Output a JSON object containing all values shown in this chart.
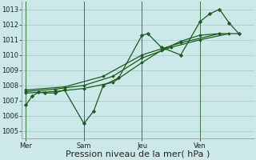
{
  "background_color": "#cce8e8",
  "grid_color": "#99cccc",
  "line_color": "#1a5c1a",
  "marker_color": "#1a5c1a",
  "xlabel": "Pression niveau de la mer( hPa )",
  "ylim": [
    1004.5,
    1013.5
  ],
  "yticks": [
    1005,
    1006,
    1007,
    1008,
    1009,
    1010,
    1011,
    1012,
    1013
  ],
  "day_labels": [
    "Mer",
    "Sam",
    "Jeu",
    "Ven"
  ],
  "day_positions": [
    0,
    3,
    6,
    9
  ],
  "xlim": [
    -0.2,
    11.8
  ],
  "vline_color": "#3a7a3a",
  "xlabel_fontsize": 8,
  "tick_fontsize": 6,
  "figsize": [
    3.2,
    2.0
  ],
  "dpi": 100,
  "series1_x": [
    0,
    0.33,
    0.67,
    1.0,
    1.5,
    2.0,
    3.0,
    3.5,
    4.0,
    4.8,
    6.0,
    6.3,
    7.0,
    8.0,
    9.0,
    9.5,
    10.0,
    10.5,
    11.0
  ],
  "series1_y": [
    1006.7,
    1007.3,
    1007.55,
    1007.5,
    1007.5,
    1007.7,
    1005.5,
    1006.3,
    1008.0,
    1008.5,
    1011.3,
    1011.4,
    1010.5,
    1010.0,
    1012.2,
    1012.7,
    1013.0,
    1012.1,
    1011.4
  ],
  "series2_x": [
    0,
    1.5,
    3.0,
    4.5,
    6.0,
    7.0,
    8.0,
    9.0,
    10.0,
    11.0
  ],
  "series2_y": [
    1007.5,
    1007.6,
    1007.8,
    1008.2,
    1009.5,
    1010.3,
    1010.9,
    1011.3,
    1011.4,
    1011.4
  ],
  "series3_x": [
    0,
    1.5,
    3.0,
    4.5,
    6.0,
    7.5,
    9.0,
    10.5
  ],
  "series3_y": [
    1007.6,
    1007.75,
    1008.0,
    1008.6,
    1009.8,
    1010.5,
    1011.0,
    1011.4
  ],
  "series4_x": [
    0,
    2.0,
    4.0,
    6.0,
    8.0,
    10.0
  ],
  "series4_y": [
    1007.7,
    1007.9,
    1008.6,
    1010.0,
    1010.8,
    1011.4
  ]
}
